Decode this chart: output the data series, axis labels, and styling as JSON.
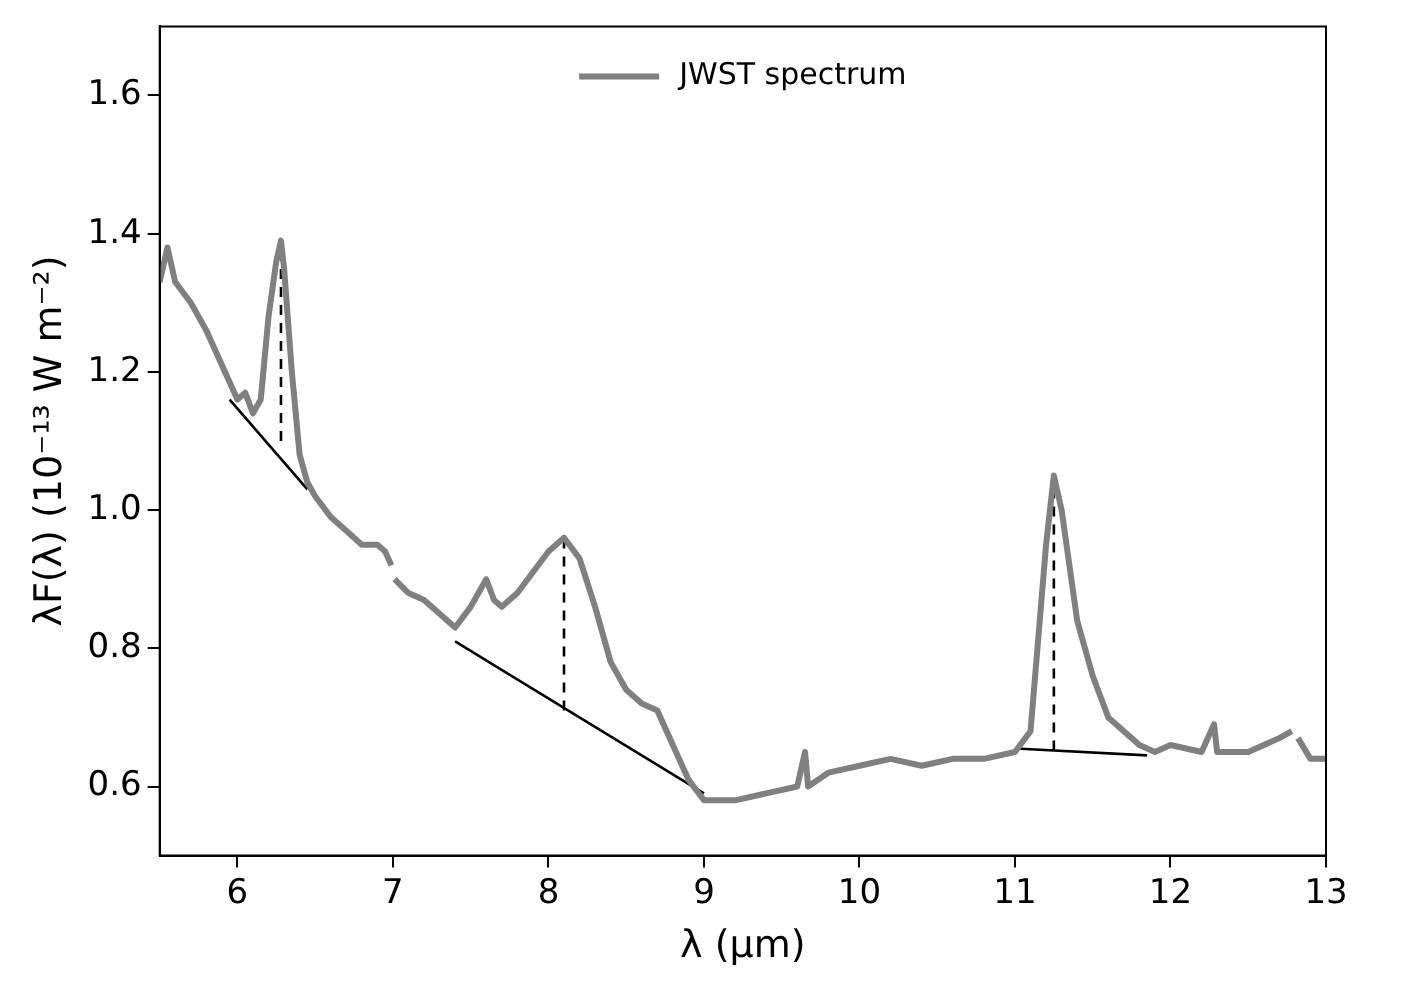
{
  "chart_data": {
    "type": "line",
    "xlabel": "λ (μm)",
    "ylabel": "λF(λ) (10⁻¹³ W m⁻²)",
    "xlim": [
      5.5,
      13
    ],
    "ylim": [
      0.5,
      1.7
    ],
    "xticks": [
      6,
      7,
      8,
      9,
      10,
      11,
      12,
      13
    ],
    "yticks": [
      {
        "value": 0.6,
        "label": "0.6"
      },
      {
        "value": 0.8,
        "label": "0.8"
      },
      {
        "value": 1.0,
        "label": "1.0"
      },
      {
        "value": 1.2,
        "label": "1.2"
      },
      {
        "value": 1.4,
        "label": "1.4"
      },
      {
        "value": 1.6,
        "label": "1.6"
      }
    ],
    "grid": false,
    "legend": "top",
    "marker": "none",
    "series": [
      {
        "name": "JWST spectrum",
        "color": "#808080",
        "line_style": "solid",
        "x": [
          5.5,
          5.55,
          5.6,
          5.7,
          5.8,
          5.9,
          6.0,
          6.05,
          6.1,
          6.15,
          6.2,
          6.25,
          6.28,
          6.3,
          6.35,
          6.4,
          6.45,
          6.5,
          6.6,
          6.7,
          6.8,
          6.9,
          6.95,
          6.99,
          7.0,
          7.01,
          7.1,
          7.2,
          7.3,
          7.4,
          7.5,
          7.6,
          7.65,
          7.7,
          7.8,
          7.9,
          8.0,
          8.1,
          8.2,
          8.3,
          8.4,
          8.5,
          8.6,
          8.7,
          8.8,
          8.9,
          9.0,
          9.2,
          9.4,
          9.6,
          9.65,
          9.67,
          9.8,
          10.0,
          10.2,
          10.4,
          10.6,
          10.8,
          11.0,
          11.1,
          11.2,
          11.25,
          11.3,
          11.4,
          11.5,
          11.6,
          11.8,
          11.9,
          12.0,
          12.2,
          12.28,
          12.3,
          12.5,
          12.7,
          12.78,
          12.8,
          12.82,
          12.9,
          13.0
        ],
        "values": [
          1.33,
          1.38,
          1.33,
          1.3,
          1.26,
          1.21,
          1.16,
          1.17,
          1.14,
          1.16,
          1.28,
          1.36,
          1.39,
          1.35,
          1.2,
          1.08,
          1.04,
          1.02,
          0.99,
          0.97,
          0.95,
          0.95,
          0.94,
          0.92,
          null,
          0.9,
          0.88,
          0.87,
          0.85,
          0.83,
          0.86,
          0.9,
          0.87,
          0.86,
          0.88,
          0.91,
          0.94,
          0.96,
          0.93,
          0.86,
          0.78,
          0.74,
          0.72,
          0.71,
          0.66,
          0.61,
          0.58,
          0.58,
          0.59,
          0.6,
          0.65,
          0.6,
          0.62,
          0.63,
          0.64,
          0.63,
          0.64,
          0.64,
          0.65,
          0.68,
          0.95,
          1.05,
          1.0,
          0.84,
          0.76,
          0.7,
          0.66,
          0.65,
          0.66,
          0.65,
          0.69,
          0.65,
          0.65,
          0.67,
          0.68,
          null,
          0.67,
          0.64,
          0.64
        ]
      },
      {
        "color": "#000000",
        "line_style": "solid",
        "x": [
          5.95,
          6.45
        ],
        "values": [
          1.16,
          1.03
        ]
      },
      {
        "color": "#000000",
        "line_style": "solid",
        "x": [
          7.4,
          9.0
        ],
        "values": [
          0.81,
          0.59
        ]
      },
      {
        "color": "#000000",
        "line_style": "solid",
        "x": [
          11.0,
          11.85
        ],
        "values": [
          0.655,
          0.645
        ]
      },
      {
        "color": "#000000",
        "line_style": "dashed",
        "x": [
          6.28,
          6.28
        ],
        "values": [
          1.1,
          1.38
        ]
      },
      {
        "color": "#000000",
        "line_style": "dashed",
        "x": [
          8.1,
          8.1
        ],
        "values": [
          0.71,
          0.96
        ]
      },
      {
        "color": "#000000",
        "line_style": "dashed",
        "x": [
          11.25,
          11.25
        ],
        "values": [
          0.652,
          1.04
        ]
      }
    ]
  }
}
